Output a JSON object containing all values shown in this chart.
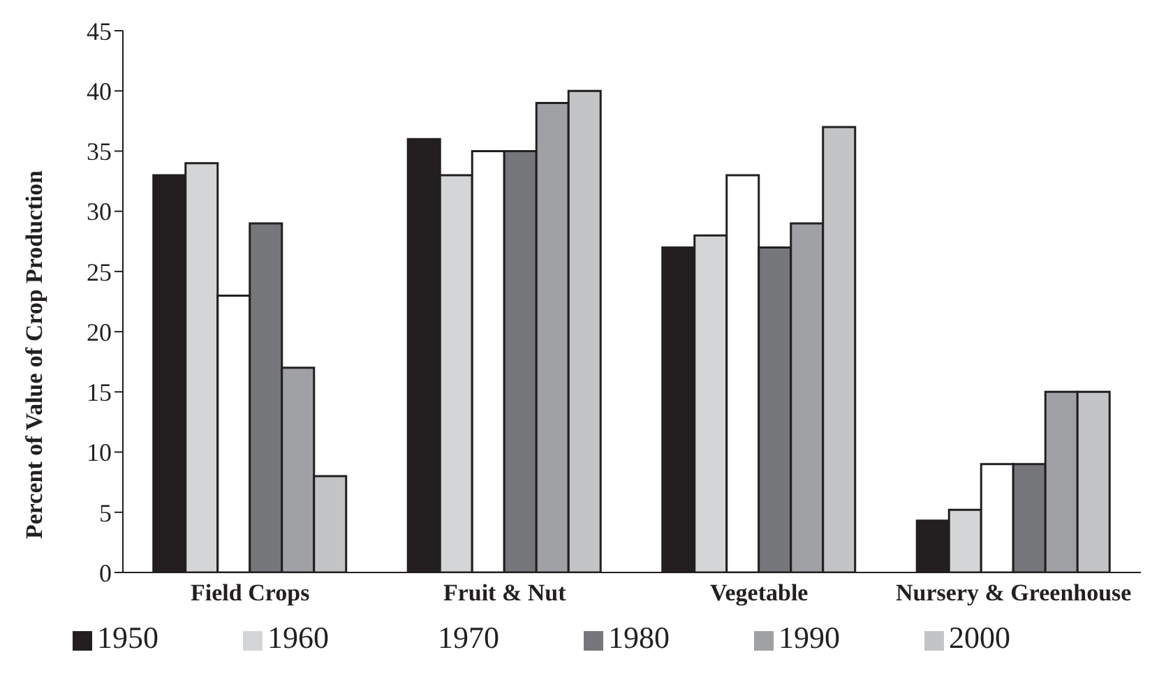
{
  "chart_data": {
    "type": "bar",
    "ylabel": "Percent of Value of Crop Production",
    "categories": [
      "Field Crops",
      "Fruit & Nut",
      "Vegetable",
      "Nursery & Greenhouse"
    ],
    "series": [
      {
        "name": "1950",
        "color": "#231f20",
        "values": [
          33,
          36,
          27,
          4.3
        ]
      },
      {
        "name": "1960",
        "color": "#d4d5d7",
        "values": [
          34,
          33,
          28,
          5.2
        ]
      },
      {
        "name": "1970",
        "color": "#ffffff",
        "values": [
          23,
          35,
          33,
          9
        ]
      },
      {
        "name": "1980",
        "color": "#76777b",
        "values": [
          29,
          35,
          27,
          9
        ]
      },
      {
        "name": "1990",
        "color": "#a0a1a5",
        "values": [
          17,
          39,
          29,
          15
        ]
      },
      {
        "name": "2000",
        "color": "#c3c4c6",
        "values": [
          8,
          40,
          37,
          15
        ]
      }
    ],
    "ylim": [
      0,
      45
    ],
    "yticks": [
      0,
      5,
      10,
      15,
      20,
      25,
      30,
      35,
      40,
      45
    ],
    "grid": false,
    "legend": "bottom"
  }
}
